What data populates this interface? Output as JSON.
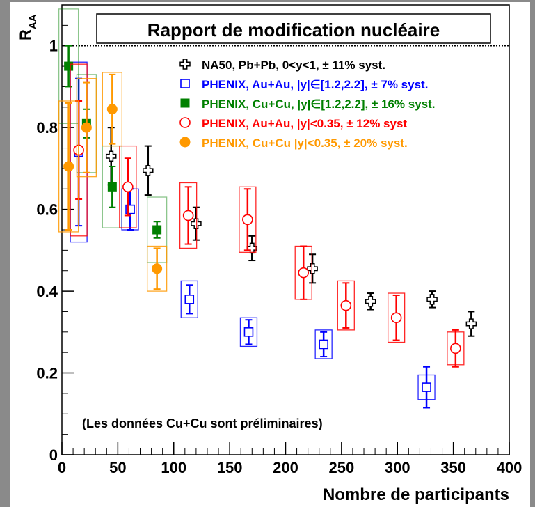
{
  "chart_data": {
    "type": "scatter",
    "title": "Rapport de modification nucléaire",
    "xlabel": "Nombre de participants",
    "ylabel": "R",
    "ylabel_sub": "AA",
    "xlim": [
      0,
      400
    ],
    "ylim": [
      0,
      1.1
    ],
    "x_ticks": [
      0,
      50,
      100,
      150,
      200,
      250,
      300,
      350,
      400
    ],
    "y_ticks": [
      0,
      0.2,
      0.4,
      0.6,
      0.8,
      1
    ],
    "x_tick_labels": [
      "0",
      "50",
      "100",
      "150",
      "200",
      "250",
      "300",
      "350",
      "400"
    ],
    "y_tick_labels": [
      "0",
      "0.2",
      "0.4",
      "0.6",
      "0.8",
      "1"
    ],
    "reference_line": 1,
    "note": "(Les données Cu+Cu sont préliminaires)",
    "grid": false,
    "legend_position": "top-right",
    "series": [
      {
        "name": "NA50, Pb+Pb, 0<y<1, ± 11% syst.",
        "color": "#000000",
        "marker": "open-cross",
        "points": [
          {
            "x": 44,
            "y": 0.73,
            "err": 0.07
          },
          {
            "x": 77,
            "y": 0.695,
            "err": 0.06
          },
          {
            "x": 120,
            "y": 0.565,
            "err": 0.04
          },
          {
            "x": 170,
            "y": 0.505,
            "err": 0.03
          },
          {
            "x": 224,
            "y": 0.455,
            "err": 0.035
          },
          {
            "x": 276,
            "y": 0.375,
            "err": 0.02
          },
          {
            "x": 331,
            "y": 0.38,
            "err": 0.02
          },
          {
            "x": 366,
            "y": 0.32,
            "err": 0.03
          }
        ]
      },
      {
        "name": "PHENIX, Au+Au, |y|∈[1.2,2.2], ± 7% syst.",
        "color": "#0000ff",
        "marker": "open-square",
        "points": [
          {
            "x": 15,
            "y": 0.74,
            "err": 0.18,
            "syst": 0.22
          },
          {
            "x": 61,
            "y": 0.6,
            "err": 0.05,
            "syst": 0.05
          },
          {
            "x": 114,
            "y": 0.38,
            "err": 0.035,
            "syst": 0.045
          },
          {
            "x": 167,
            "y": 0.3,
            "err": 0.03,
            "syst": 0.035
          },
          {
            "x": 234,
            "y": 0.27,
            "err": 0.03,
            "syst": 0.035
          },
          {
            "x": 326,
            "y": 0.165,
            "err": 0.05,
            "syst": 0.03
          }
        ]
      },
      {
        "name": "PHENIX, Cu+Cu, |y|∈[1.2,2.2], ± 16% syst.",
        "color": "#008000",
        "marker": "filled-square",
        "points": [
          {
            "x": 6,
            "y": 0.95,
            "err": 0.05,
            "syst": 0.14
          },
          {
            "x": 22,
            "y": 0.81,
            "err": 0.035,
            "syst": 0.12
          },
          {
            "x": 45,
            "y": 0.655,
            "err": 0.05,
            "syst": 0.1
          },
          {
            "x": 85,
            "y": 0.55,
            "err": 0.02,
            "syst": 0.08
          }
        ]
      },
      {
        "name": "PHENIX, Au+Au, |y|<0.35, ± 12% syst",
        "color": "#ff0000",
        "marker": "open-circle",
        "points": [
          {
            "x": 15,
            "y": 0.745,
            "err": 0.12,
            "syst": 0.21
          },
          {
            "x": 59,
            "y": 0.655,
            "err": 0.07,
            "syst": 0.1
          },
          {
            "x": 113,
            "y": 0.585,
            "err": 0.07,
            "syst": 0.08
          },
          {
            "x": 166,
            "y": 0.575,
            "err": 0.075,
            "syst": 0.08
          },
          {
            "x": 216,
            "y": 0.445,
            "err": 0.065,
            "syst": 0.065
          },
          {
            "x": 254,
            "y": 0.365,
            "err": 0.055,
            "syst": 0.06
          },
          {
            "x": 299,
            "y": 0.335,
            "err": 0.055,
            "syst": 0.06
          },
          {
            "x": 352,
            "y": 0.26,
            "err": 0.045,
            "syst": 0.04
          }
        ]
      },
      {
        "name": "PHENIX, Cu+Cu |y|<0.35, ± 20% syst.",
        "color": "#ff9900",
        "marker": "filled-circle",
        "points": [
          {
            "x": 6,
            "y": 0.705,
            "err": 0.155,
            "syst": 0.16
          },
          {
            "x": 22,
            "y": 0.8,
            "err": 0.11,
            "syst": 0.12
          },
          {
            "x": 45,
            "y": 0.845,
            "err": 0.085,
            "syst": 0.09
          },
          {
            "x": 85,
            "y": 0.455,
            "err": 0.05,
            "syst": 0.055
          }
        ]
      }
    ]
  }
}
